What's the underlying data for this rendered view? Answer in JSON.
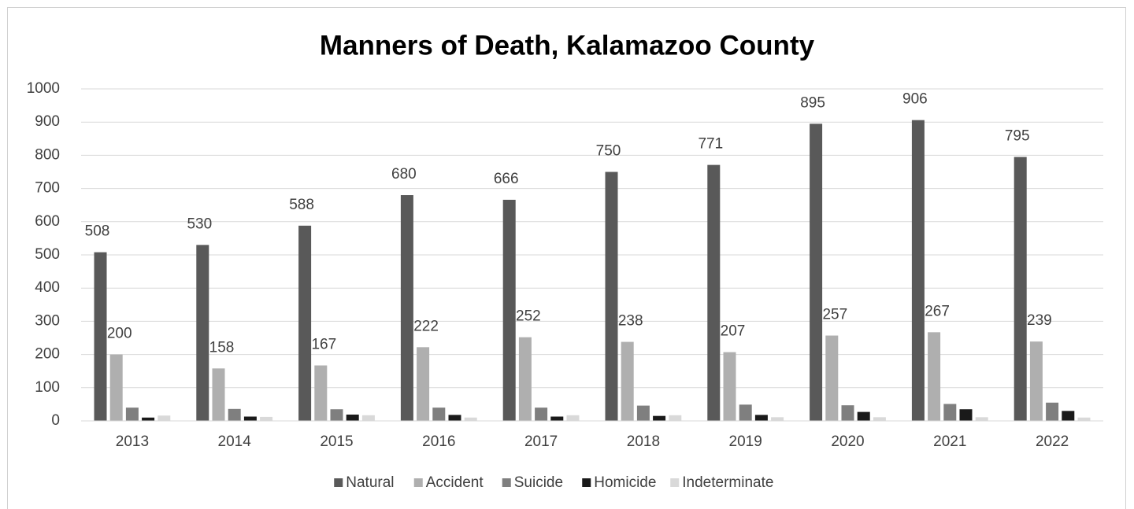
{
  "chart_data": {
    "type": "bar",
    "title": "Manners of Death, Kalamazoo County",
    "categories": [
      "2013",
      "2014",
      "2015",
      "2016",
      "2017",
      "2018",
      "2019",
      "2020",
      "2021",
      "2022"
    ],
    "series": [
      {
        "name": "Natural",
        "color": "#595959",
        "data_labels": true,
        "values": [
          508,
          530,
          588,
          680,
          666,
          750,
          771,
          895,
          906,
          795
        ]
      },
      {
        "name": "Accident",
        "color": "#afafaf",
        "data_labels": true,
        "values": [
          200,
          158,
          167,
          222,
          252,
          238,
          207,
          257,
          267,
          239
        ]
      },
      {
        "name": "Suicide",
        "color": "#7f7f7f",
        "data_labels": false,
        "values": [
          40,
          36,
          35,
          40,
          40,
          46,
          49,
          47,
          51,
          55
        ]
      },
      {
        "name": "Homicide",
        "color": "#1a1a1a",
        "data_labels": false,
        "values": [
          10,
          13,
          19,
          18,
          13,
          15,
          18,
          27,
          35,
          30
        ]
      },
      {
        "name": "Indeterminate",
        "color": "#d9d9d9",
        "data_labels": false,
        "values": [
          16,
          12,
          17,
          10,
          17,
          17,
          11,
          11,
          11,
          10
        ]
      }
    ],
    "ylim": [
      0,
      1000
    ],
    "yticks": [
      0,
      100,
      200,
      300,
      400,
      500,
      600,
      700,
      800,
      900,
      1000
    ],
    "grid": true,
    "legend": "bottom"
  }
}
